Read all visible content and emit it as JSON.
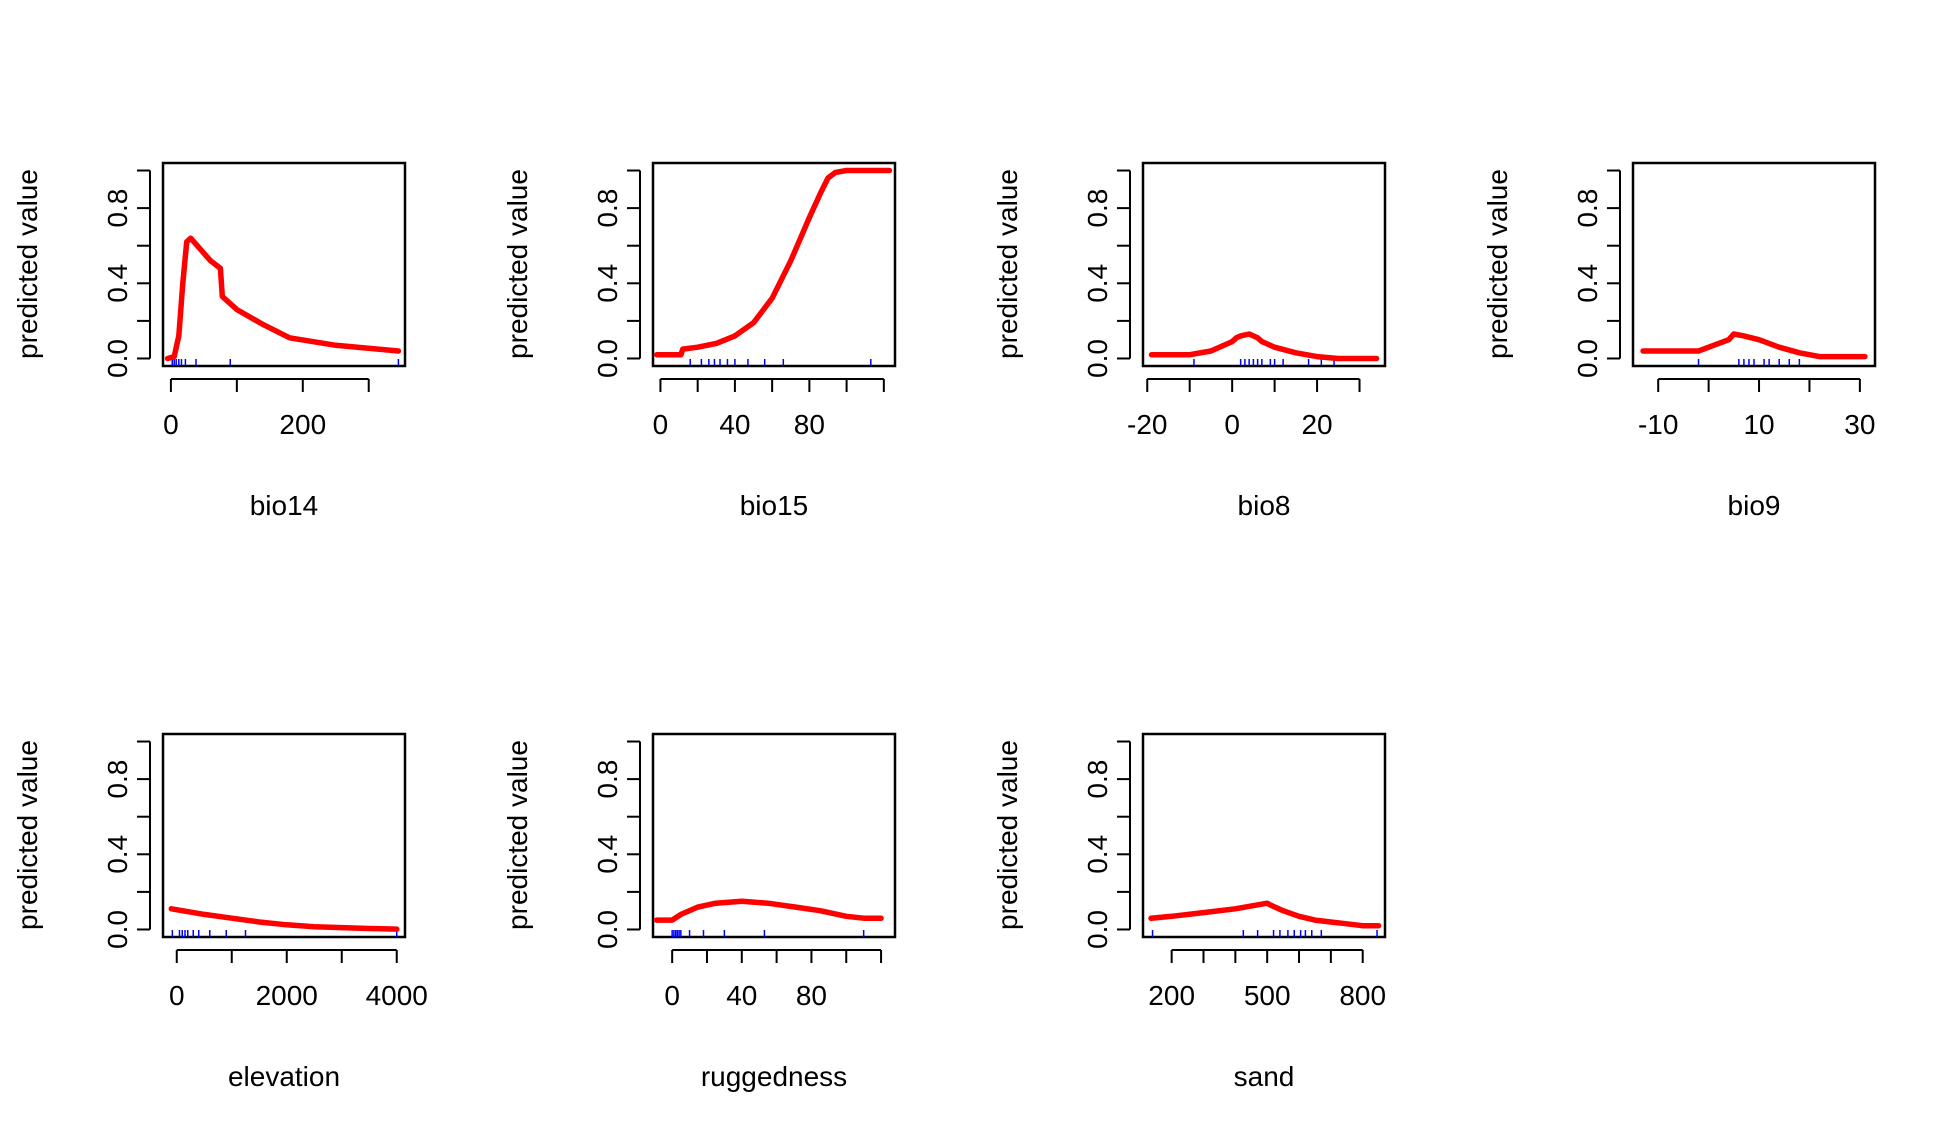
{
  "figure": {
    "y_axis_label": "predicted value"
  },
  "colors": {
    "curve": "#ff0000",
    "rug": "#0000ff",
    "frame": "#000000"
  },
  "chart_data": [
    {
      "type": "line",
      "xlabel": "bio14",
      "ylabel": "predicted value",
      "xlim": [
        -12,
        355
      ],
      "ylim": [
        -0.04,
        1.04
      ],
      "xticks": [
        0,
        100,
        200,
        300
      ],
      "xtick_labels": [
        "0",
        "",
        "200",
        ""
      ],
      "yticks": [
        0,
        0.2,
        0.4,
        0.6,
        0.8,
        1.0
      ],
      "ytick_labels": [
        "0.0",
        "",
        "0.4",
        "",
        "0.8",
        ""
      ],
      "series": [
        {
          "x": [
            -5,
            5,
            12,
            18,
            24,
            30,
            35,
            45,
            60,
            75,
            78,
            100,
            140,
            180,
            250,
            345
          ],
          "y": [
            0.0,
            0.01,
            0.12,
            0.4,
            0.62,
            0.64,
            0.62,
            0.58,
            0.52,
            0.48,
            0.33,
            0.26,
            0.18,
            0.11,
            0.07,
            0.04
          ]
        }
      ],
      "rug": [
        2,
        5,
        8,
        12,
        16,
        22,
        38,
        90,
        345
      ]
    },
    {
      "type": "line",
      "xlabel": "bio15",
      "ylabel": "predicted value",
      "xlim": [
        -4,
        126
      ],
      "ylim": [
        -0.04,
        1.04
      ],
      "xticks": [
        0,
        20,
        40,
        60,
        80,
        100,
        120
      ],
      "xtick_labels": [
        "0",
        "",
        "40",
        "",
        "80",
        "",
        ""
      ],
      "yticks": [
        0,
        0.2,
        0.4,
        0.6,
        0.8,
        1.0
      ],
      "ytick_labels": [
        "0.0",
        "",
        "0.4",
        "",
        "0.8",
        ""
      ],
      "series": [
        {
          "x": [
            -2,
            11,
            12,
            20,
            30,
            40,
            50,
            60,
            70,
            80,
            86,
            90,
            94,
            100,
            110,
            123
          ],
          "y": [
            0.02,
            0.02,
            0.05,
            0.06,
            0.08,
            0.12,
            0.19,
            0.32,
            0.52,
            0.75,
            0.88,
            0.96,
            0.99,
            1.0,
            1.0,
            1.0
          ]
        }
      ],
      "rug": [
        16,
        22,
        26,
        29,
        32,
        36,
        40,
        47,
        56,
        66,
        113
      ]
    },
    {
      "type": "line",
      "xlabel": "bio8",
      "ylabel": "predicted value",
      "xlim": [
        -21,
        36
      ],
      "ylim": [
        -0.04,
        1.04
      ],
      "xticks": [
        -20,
        -10,
        0,
        10,
        20,
        30
      ],
      "xtick_labels": [
        "-20",
        "",
        "0",
        "",
        "20",
        ""
      ],
      "yticks": [
        0,
        0.2,
        0.4,
        0.6,
        0.8,
        1.0
      ],
      "ytick_labels": [
        "0.0",
        "",
        "0.4",
        "",
        "0.8",
        ""
      ],
      "series": [
        {
          "x": [
            -19,
            -10,
            -5,
            0,
            1,
            2,
            4,
            6,
            7,
            8,
            10,
            15,
            20,
            25,
            34
          ],
          "y": [
            0.02,
            0.02,
            0.04,
            0.09,
            0.11,
            0.12,
            0.13,
            0.11,
            0.09,
            0.08,
            0.06,
            0.03,
            0.01,
            0.0,
            0.0
          ]
        }
      ],
      "rug": [
        -9,
        2,
        3,
        4,
        5,
        6,
        7,
        9,
        10,
        12,
        18,
        21,
        24
      ]
    },
    {
      "type": "line",
      "xlabel": "bio9",
      "ylabel": "predicted value",
      "xlim": [
        -15,
        33
      ],
      "ylim": [
        -0.04,
        1.04
      ],
      "xticks": [
        -10,
        0,
        10,
        20,
        30
      ],
      "xtick_labels": [
        "-10",
        "",
        "10",
        "",
        "30"
      ],
      "yticks": [
        0,
        0.2,
        0.4,
        0.6,
        0.8,
        1.0
      ],
      "ytick_labels": [
        "0.0",
        "",
        "0.4",
        "",
        "0.8",
        ""
      ],
      "series": [
        {
          "x": [
            -13,
            -2,
            1,
            4,
            5,
            7,
            10,
            14,
            18,
            22,
            26,
            31
          ],
          "y": [
            0.04,
            0.04,
            0.07,
            0.1,
            0.13,
            0.12,
            0.1,
            0.06,
            0.03,
            0.01,
            0.01,
            0.01
          ]
        }
      ],
      "rug": [
        -2,
        6,
        7,
        8,
        9,
        11,
        12,
        14,
        16,
        18
      ]
    },
    {
      "type": "line",
      "xlabel": "elevation",
      "ylabel": "predicted value",
      "xlim": [
        -250,
        4150
      ],
      "ylim": [
        -0.04,
        1.04
      ],
      "xticks": [
        0,
        1000,
        2000,
        3000,
        4000
      ],
      "xtick_labels": [
        "0",
        "",
        "2000",
        "",
        "4000"
      ],
      "yticks": [
        0,
        0.2,
        0.4,
        0.6,
        0.8,
        1.0
      ],
      "ytick_labels": [
        "0.0",
        "",
        "0.4",
        "",
        "0.8",
        ""
      ],
      "series": [
        {
          "x": [
            -100,
            500,
            1000,
            1500,
            2000,
            2500,
            3000,
            3500,
            4000
          ],
          "y": [
            0.11,
            0.08,
            0.06,
            0.04,
            0.025,
            0.015,
            0.01,
            0.005,
            0.002
          ]
        }
      ],
      "rug": [
        -80,
        50,
        100,
        150,
        200,
        300,
        400,
        600,
        900,
        1250,
        4000
      ]
    },
    {
      "type": "line",
      "xlabel": "ruggedness",
      "ylabel": "predicted value",
      "xlim": [
        -11,
        128
      ],
      "ylim": [
        -0.04,
        1.04
      ],
      "xticks": [
        0,
        20,
        40,
        60,
        80,
        100,
        120
      ],
      "xtick_labels": [
        "0",
        "",
        "40",
        "",
        "80",
        "",
        ""
      ],
      "yticks": [
        0,
        0.2,
        0.4,
        0.6,
        0.8,
        1.0
      ],
      "ytick_labels": [
        "0.0",
        "",
        "0.4",
        "",
        "0.8",
        ""
      ],
      "series": [
        {
          "x": [
            -9,
            0,
            5,
            15,
            25,
            40,
            55,
            70,
            85,
            100,
            110,
            120
          ],
          "y": [
            0.05,
            0.05,
            0.08,
            0.12,
            0.14,
            0.15,
            0.14,
            0.12,
            0.1,
            0.07,
            0.06,
            0.06
          ]
        }
      ],
      "rug": [
        0,
        1,
        2,
        3,
        4,
        5,
        10,
        18,
        30,
        53,
        110
      ]
    },
    {
      "type": "line",
      "xlabel": "sand",
      "ylabel": "predicted value",
      "xlim": [
        110,
        870
      ],
      "ylim": [
        -0.04,
        1.04
      ],
      "xticks": [
        200,
        300,
        400,
        500,
        600,
        700,
        800
      ],
      "xtick_labels": [
        "200",
        "",
        "",
        "500",
        "",
        "",
        "800"
      ],
      "yticks": [
        0,
        0.2,
        0.4,
        0.6,
        0.8,
        1.0
      ],
      "ytick_labels": [
        "0.0",
        "",
        "0.4",
        "",
        "0.8",
        ""
      ],
      "series": [
        {
          "x": [
            135,
            200,
            300,
            400,
            500,
            510,
            550,
            600,
            650,
            700,
            750,
            800,
            850
          ],
          "y": [
            0.06,
            0.07,
            0.09,
            0.11,
            0.14,
            0.13,
            0.1,
            0.07,
            0.05,
            0.04,
            0.03,
            0.02,
            0.02
          ]
        }
      ],
      "rug": [
        140,
        425,
        470,
        520,
        540,
        565,
        585,
        605,
        620,
        640,
        670,
        845
      ]
    }
  ]
}
